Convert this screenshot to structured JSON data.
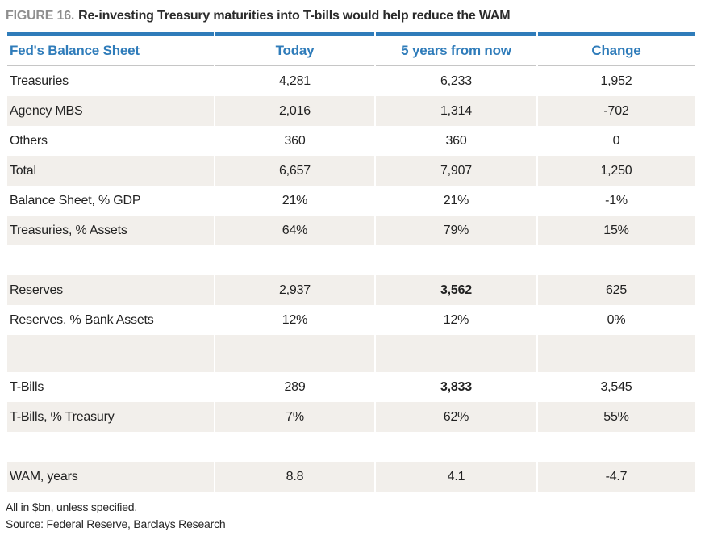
{
  "figure": {
    "label": "FIGURE 16.",
    "title": "Re-investing Treasury maturities into T-bills would help reduce the WAM"
  },
  "table": {
    "header": {
      "col1": "Fed's Balance Sheet",
      "col2": "Today",
      "col3": "5 years from now",
      "col4": "Change"
    },
    "rows": [
      {
        "label": "Treasuries",
        "today": "4,281",
        "future": "6,233",
        "change": "1,952"
      },
      {
        "label": "Agency MBS",
        "today": "2,016",
        "future": "1,314",
        "change": "-702"
      },
      {
        "label": "Others",
        "today": "360",
        "future": "360",
        "change": "0"
      },
      {
        "label": "Total",
        "today": "6,657",
        "future": "7,907",
        "change": "1,250"
      },
      {
        "label": "Balance Sheet, % GDP",
        "today": "21%",
        "future": "21%",
        "change": "-1%"
      },
      {
        "label": "Treasuries, % Assets",
        "today": "64%",
        "future": "79%",
        "change": "15%"
      },
      {
        "spacer": true
      },
      {
        "label": "Reserves",
        "today": "2,937",
        "future": "3,562",
        "change": "625",
        "future_bold": true
      },
      {
        "label": "Reserves, % Bank Assets",
        "today": "12%",
        "future": "12%",
        "change": "0%"
      },
      {
        "spacer": true,
        "tall": true
      },
      {
        "label": "T-Bills",
        "today": "289",
        "future": "3,833",
        "change": "3,545",
        "future_bold": true
      },
      {
        "label": "T-Bills, % Treasury",
        "today": "7%",
        "future": "62%",
        "change": "55%"
      },
      {
        "spacer": true
      },
      {
        "label": "WAM, years",
        "today": "8.8",
        "future": "4.1",
        "change": "-4.7"
      }
    ]
  },
  "footnotes": {
    "line1": "All in $bn, unless specified.",
    "line2": "Source: Federal Reserve, Barclays Research"
  },
  "colors": {
    "accent_blue": "#2f7cba",
    "stripe_bg": "#f2efeb",
    "header_rule": "#c6c6c6",
    "figure_label_gray": "#8e8e8e",
    "text_dark": "#222222"
  }
}
